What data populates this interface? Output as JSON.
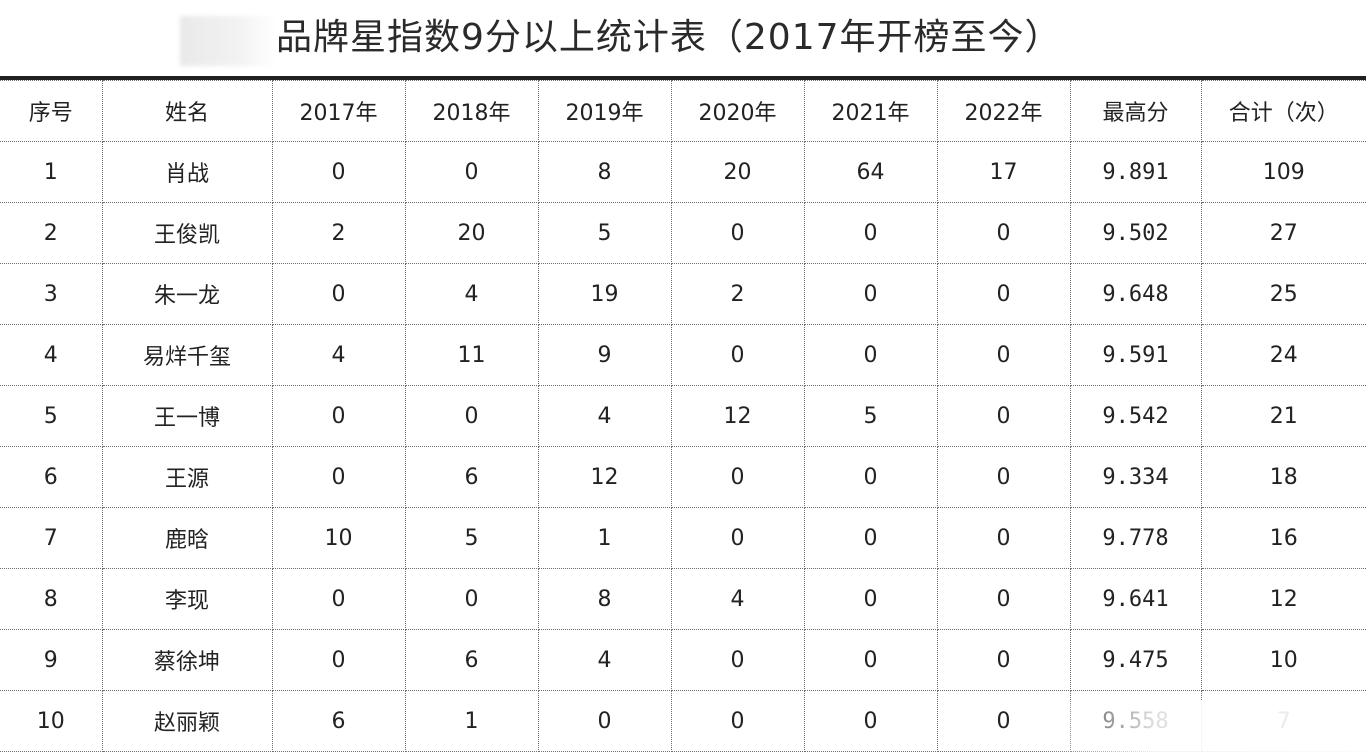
{
  "title": {
    "text": "品牌星指数9分以上统计表（2017年开榜至今）"
  },
  "columns": [
    "序号",
    "姓名",
    "2017年",
    "2018年",
    "2019年",
    "2020年",
    "2021年",
    "2022年",
    "最高分",
    "合计（次）"
  ],
  "rows": [
    [
      "1",
      "肖战",
      "0",
      "0",
      "8",
      "20",
      "64",
      "17",
      "9.891",
      "109"
    ],
    [
      "2",
      "王俊凯",
      "2",
      "20",
      "5",
      "0",
      "0",
      "0",
      "9.502",
      "27"
    ],
    [
      "3",
      "朱一龙",
      "0",
      "4",
      "19",
      "2",
      "0",
      "0",
      "9.648",
      "25"
    ],
    [
      "4",
      "易烊千玺",
      "4",
      "11",
      "9",
      "0",
      "0",
      "0",
      "9.591",
      "24"
    ],
    [
      "5",
      "王一博",
      "0",
      "0",
      "4",
      "12",
      "5",
      "0",
      "9.542",
      "21"
    ],
    [
      "6",
      "王源",
      "0",
      "6",
      "12",
      "0",
      "0",
      "0",
      "9.334",
      "18"
    ],
    [
      "7",
      "鹿晗",
      "10",
      "5",
      "1",
      "0",
      "0",
      "0",
      "9.778",
      "16"
    ],
    [
      "8",
      "李现",
      "0",
      "0",
      "8",
      "4",
      "0",
      "0",
      "9.641",
      "12"
    ],
    [
      "9",
      "蔡徐坤",
      "0",
      "6",
      "4",
      "0",
      "0",
      "0",
      "9.475",
      "10"
    ],
    [
      "10",
      "赵丽颖",
      "6",
      "1",
      "0",
      "0",
      "0",
      "0",
      "9.558",
      "7"
    ]
  ],
  "highlights": [
    {
      "row": 0,
      "col": 5
    },
    {
      "row": 0,
      "col": 6
    },
    {
      "row": 0,
      "col": 7
    },
    {
      "row": 1,
      "col": 3
    },
    {
      "row": 2,
      "col": 4
    },
    {
      "row": 6,
      "col": 2
    }
  ],
  "colors": {
    "highlight": "#a01f1f",
    "text": "#222222",
    "rule": "#202020"
  }
}
